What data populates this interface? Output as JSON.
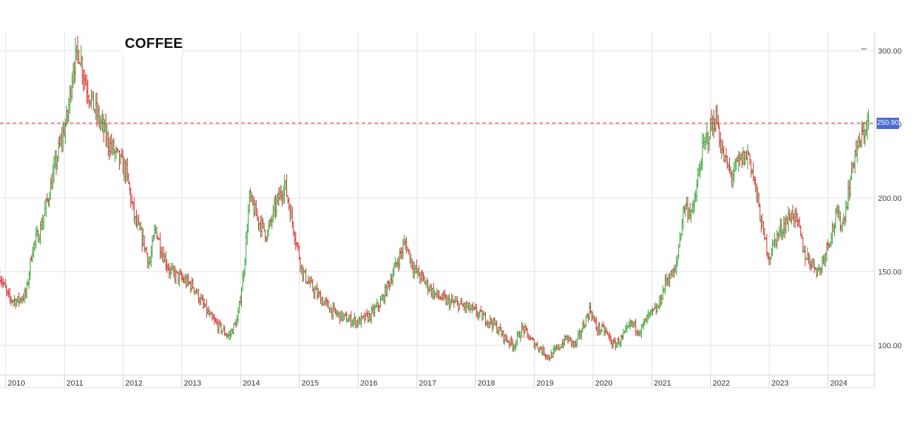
{
  "chart_data": {
    "type": "ohlc",
    "title": "COFFEE",
    "last_value_label": "250.90",
    "reference_line": {
      "value": 250.9,
      "color": "#e24a4a",
      "style": "dashed"
    },
    "y_ticks": [
      "300.00",
      "250.00",
      "200.00",
      "150.00",
      "100.00"
    ],
    "x_ticks": [
      "2010",
      "2011",
      "2012",
      "2013",
      "2014",
      "2015",
      "2016",
      "2017",
      "2018",
      "2019",
      "2020",
      "2021",
      "2022",
      "2023",
      "2024"
    ],
    "ylim": [
      80,
      305
    ],
    "xlim": [
      2009.9,
      2024.7
    ],
    "grid": true,
    "up_color": "#2ca02c",
    "down_color": "#d62728",
    "trend_points": [
      [
        2009.9,
        148
      ],
      [
        2010.05,
        132
      ],
      [
        2010.2,
        130
      ],
      [
        2010.35,
        135
      ],
      [
        2010.45,
        165
      ],
      [
        2010.6,
        180
      ],
      [
        2010.75,
        205
      ],
      [
        2010.9,
        232
      ],
      [
        2011.05,
        255
      ],
      [
        2011.15,
        290
      ],
      [
        2011.25,
        300
      ],
      [
        2011.35,
        280
      ],
      [
        2011.5,
        262
      ],
      [
        2011.65,
        248
      ],
      [
        2011.75,
        238
      ],
      [
        2011.9,
        228
      ],
      [
        2012.05,
        218
      ],
      [
        2012.2,
        185
      ],
      [
        2012.35,
        170
      ],
      [
        2012.45,
        155
      ],
      [
        2012.55,
        180
      ],
      [
        2012.65,
        165
      ],
      [
        2012.8,
        150
      ],
      [
        2013.0,
        145
      ],
      [
        2013.2,
        140
      ],
      [
        2013.35,
        128
      ],
      [
        2013.5,
        118
      ],
      [
        2013.65,
        112
      ],
      [
        2013.8,
        106
      ],
      [
        2013.95,
        118
      ],
      [
        2014.05,
        150
      ],
      [
        2014.15,
        200
      ],
      [
        2014.3,
        185
      ],
      [
        2014.45,
        175
      ],
      [
        2014.6,
        195
      ],
      [
        2014.75,
        210
      ],
      [
        2014.9,
        180
      ],
      [
        2015.05,
        150
      ],
      [
        2015.2,
        140
      ],
      [
        2015.4,
        130
      ],
      [
        2015.6,
        122
      ],
      [
        2015.8,
        118
      ],
      [
        2016.0,
        116
      ],
      [
        2016.2,
        120
      ],
      [
        2016.4,
        130
      ],
      [
        2016.6,
        150
      ],
      [
        2016.8,
        170
      ],
      [
        2016.95,
        152
      ],
      [
        2017.1,
        145
      ],
      [
        2017.3,
        135
      ],
      [
        2017.5,
        130
      ],
      [
        2017.7,
        128
      ],
      [
        2017.9,
        125
      ],
      [
        2018.1,
        120
      ],
      [
        2018.3,
        115
      ],
      [
        2018.5,
        105
      ],
      [
        2018.65,
        100
      ],
      [
        2018.8,
        112
      ],
      [
        2018.95,
        103
      ],
      [
        2019.1,
        98
      ],
      [
        2019.25,
        92
      ],
      [
        2019.4,
        98
      ],
      [
        2019.55,
        105
      ],
      [
        2019.7,
        100
      ],
      [
        2019.85,
        115
      ],
      [
        2019.95,
        125
      ],
      [
        2020.05,
        112
      ],
      [
        2020.2,
        110
      ],
      [
        2020.35,
        100
      ],
      [
        2020.5,
        105
      ],
      [
        2020.65,
        115
      ],
      [
        2020.8,
        110
      ],
      [
        2020.95,
        120
      ],
      [
        2021.1,
        125
      ],
      [
        2021.25,
        145
      ],
      [
        2021.4,
        150
      ],
      [
        2021.55,
        195
      ],
      [
        2021.7,
        190
      ],
      [
        2021.85,
        230
      ],
      [
        2022.0,
        248
      ],
      [
        2022.1,
        255
      ],
      [
        2022.2,
        230
      ],
      [
        2022.35,
        215
      ],
      [
        2022.5,
        225
      ],
      [
        2022.65,
        230
      ],
      [
        2022.75,
        210
      ],
      [
        2022.9,
        175
      ],
      [
        2023.0,
        160
      ],
      [
        2023.1,
        172
      ],
      [
        2023.25,
        182
      ],
      [
        2023.4,
        190
      ],
      [
        2023.5,
        180
      ],
      [
        2023.6,
        162
      ],
      [
        2023.75,
        155
      ],
      [
        2023.85,
        150
      ],
      [
        2024.0,
        170
      ],
      [
        2024.15,
        188
      ],
      [
        2024.25,
        182
      ],
      [
        2024.35,
        205
      ],
      [
        2024.45,
        230
      ],
      [
        2024.55,
        238
      ],
      [
        2024.65,
        250
      ]
    ]
  }
}
